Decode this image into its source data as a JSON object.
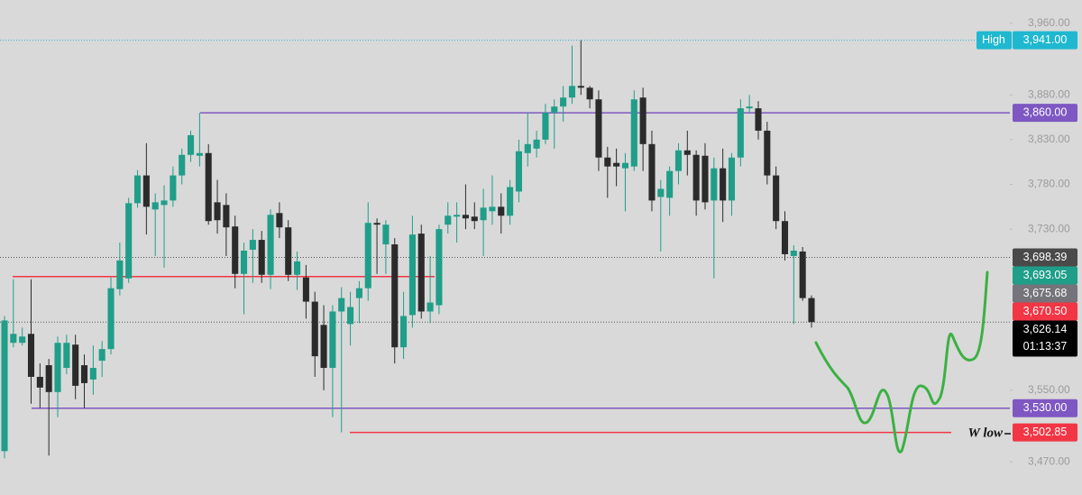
{
  "chart_data": {
    "type": "candlestick",
    "ylim": [
      3433,
      3986
    ],
    "yticks": [
      {
        "value": 3960,
        "label": "3,960.00"
      },
      {
        "value": 3880,
        "label": "3,880.00"
      },
      {
        "value": 3830,
        "label": "3,830.00"
      },
      {
        "value": 3780,
        "label": "3,780.00"
      },
      {
        "value": 3730,
        "label": "3,730.00"
      },
      {
        "value": 3550,
        "label": "3,550.00"
      },
      {
        "value": 3470,
        "label": "3,470.00"
      }
    ],
    "up_color": "#1f9e89",
    "down_color": "#2b2b2b",
    "open": [
      3482,
      3603,
      3603,
      3613,
      3565,
      3578,
      3548,
      3575,
      3601,
      3578,
      3562,
      3583,
      3596,
      3663,
      3675,
      3759,
      3790,
      3752,
      3757,
      3762,
      3790,
      3813,
      3812,
      3815,
      3760,
      3757,
      3733,
      3680,
      3707,
      3718,
      3679,
      3748,
      3732,
      3679,
      3676,
      3649,
      3623,
      3575,
      3638,
      3624,
      3653,
      3664,
      3737,
      3713,
      3713,
      3598,
      3634,
      3725,
      3638,
      3645,
      3735,
      3744,
      3746,
      3744,
      3740,
      3750,
      3755,
      3745,
      3772,
      3815,
      3820,
      3830,
      3860,
      3867,
      3877,
      3890,
      3888,
      3875,
      3810,
      3804,
      3798,
      3800,
      3877,
      3825,
      3766,
      3765,
      3795,
      3818,
      3813,
      3812,
      3762,
      3798,
      3762,
      3810,
      3865,
      3865,
      3840,
      3790,
      3739,
      3700,
      3705,
      3653
    ],
    "high": [
      3633,
      3674,
      3620,
      3674,
      3580,
      3585,
      3610,
      3612,
      3612,
      3590,
      3600,
      3605,
      3676,
      3715,
      3765,
      3796,
      3826,
      3770,
      3779,
      3800,
      3820,
      3840,
      3860,
      3825,
      3785,
      3770,
      3745,
      3715,
      3730,
      3728,
      3752,
      3760,
      3740,
      3705,
      3690,
      3660,
      3645,
      3645,
      3665,
      3660,
      3672,
      3760,
      3742,
      3740,
      3720,
      3660,
      3745,
      3735,
      3700,
      3735,
      3760,
      3760,
      3780,
      3760,
      3775,
      3790,
      3770,
      3785,
      3830,
      3860,
      3840,
      3870,
      3875,
      3890,
      3935,
      3941,
      3890,
      3885,
      3822,
      3820,
      3815,
      3885,
      3888,
      3840,
      3785,
      3800,
      3826,
      3840,
      3818,
      3826,
      3810,
      3820,
      3815,
      3875,
      3880,
      3873,
      3850,
      3800,
      3750,
      3712,
      3710,
      3656
    ],
    "low": [
      3474,
      3598,
      3600,
      3535,
      3530,
      3477,
      3520,
      3568,
      3540,
      3530,
      3545,
      3565,
      3590,
      3656,
      3670,
      3754,
      3724,
      3700,
      3687,
      3755,
      3780,
      3805,
      3800,
      3735,
      3725,
      3700,
      3664,
      3635,
      3670,
      3670,
      3663,
      3720,
      3672,
      3662,
      3630,
      3565,
      3550,
      3520,
      3503,
      3600,
      3625,
      3650,
      3680,
      3680,
      3580,
      3585,
      3620,
      3630,
      3625,
      3635,
      3725,
      3715,
      3730,
      3730,
      3700,
      3735,
      3725,
      3735,
      3760,
      3800,
      3810,
      3825,
      3820,
      3850,
      3870,
      3880,
      3865,
      3795,
      3765,
      3778,
      3750,
      3795,
      3795,
      3750,
      3705,
      3745,
      3780,
      3790,
      3745,
      3752,
      3675,
      3738,
      3745,
      3800,
      3860,
      3830,
      3780,
      3730,
      3695,
      3624,
      3650,
      3620
    ],
    "close": [
      3628,
      3613,
      3610,
      3565,
      3553,
      3548,
      3603,
      3603,
      3555,
      3558,
      3575,
      3596,
      3664,
      3695,
      3759,
      3790,
      3755,
      3760,
      3762,
      3790,
      3813,
      3835,
      3815,
      3739,
      3740,
      3732,
      3680,
      3706,
      3718,
      3679,
      3746,
      3732,
      3679,
      3694,
      3649,
      3588,
      3575,
      3638,
      3653,
      3643,
      3664,
      3737,
      3735,
      3735,
      3598,
      3633,
      3724,
      3638,
      3648,
      3730,
      3745,
      3746,
      3742,
      3739,
      3754,
      3755,
      3745,
      3777,
      3817,
      3825,
      3830,
      3860,
      3867,
      3877,
      3890,
      3888,
      3875,
      3810,
      3800,
      3800,
      3804,
      3875,
      3825,
      3762,
      3775,
      3795,
      3818,
      3813,
      3762,
      3760,
      3798,
      3762,
      3810,
      3865,
      3867,
      3840,
      3790,
      3739,
      3702,
      3706,
      3653,
      3626.14
    ],
    "levels": [
      {
        "value": 3860,
        "color": "#7e57c2"
      },
      {
        "value": 3677,
        "color": "#f23645"
      },
      {
        "value": 3530,
        "color": "#7e57c2"
      },
      {
        "value": 3502.85,
        "color": "#f23645"
      }
    ],
    "price_labels": [
      {
        "name": "High",
        "value": 3941,
        "label": "3,941.00",
        "color": "#1fb8d0",
        "line": "dotted"
      },
      {
        "value": 3860,
        "label": "3,860.00",
        "color": "#7e57c2"
      },
      {
        "value": 3698.39,
        "label": "3,698.39",
        "color": "#4a4a4a",
        "line": "dotted"
      },
      {
        "value": 3693.05,
        "label": "3,693.05",
        "color": "#1f9e89"
      },
      {
        "value": 3675.68,
        "label": "3,675.68",
        "color": "#74747a"
      },
      {
        "value": 3670.5,
        "label": "3,670.50",
        "color": "#f23645"
      },
      {
        "value": 3626.14,
        "label": "3,626.14",
        "color": "#000000",
        "countdown": "01:13:37",
        "line": "dotted"
      },
      {
        "value": 3530,
        "label": "3,530.00",
        "color": "#7e57c2"
      },
      {
        "value": 3502.85,
        "label": "3,502.85",
        "color": "#f23645"
      }
    ],
    "annotation": "W low"
  }
}
